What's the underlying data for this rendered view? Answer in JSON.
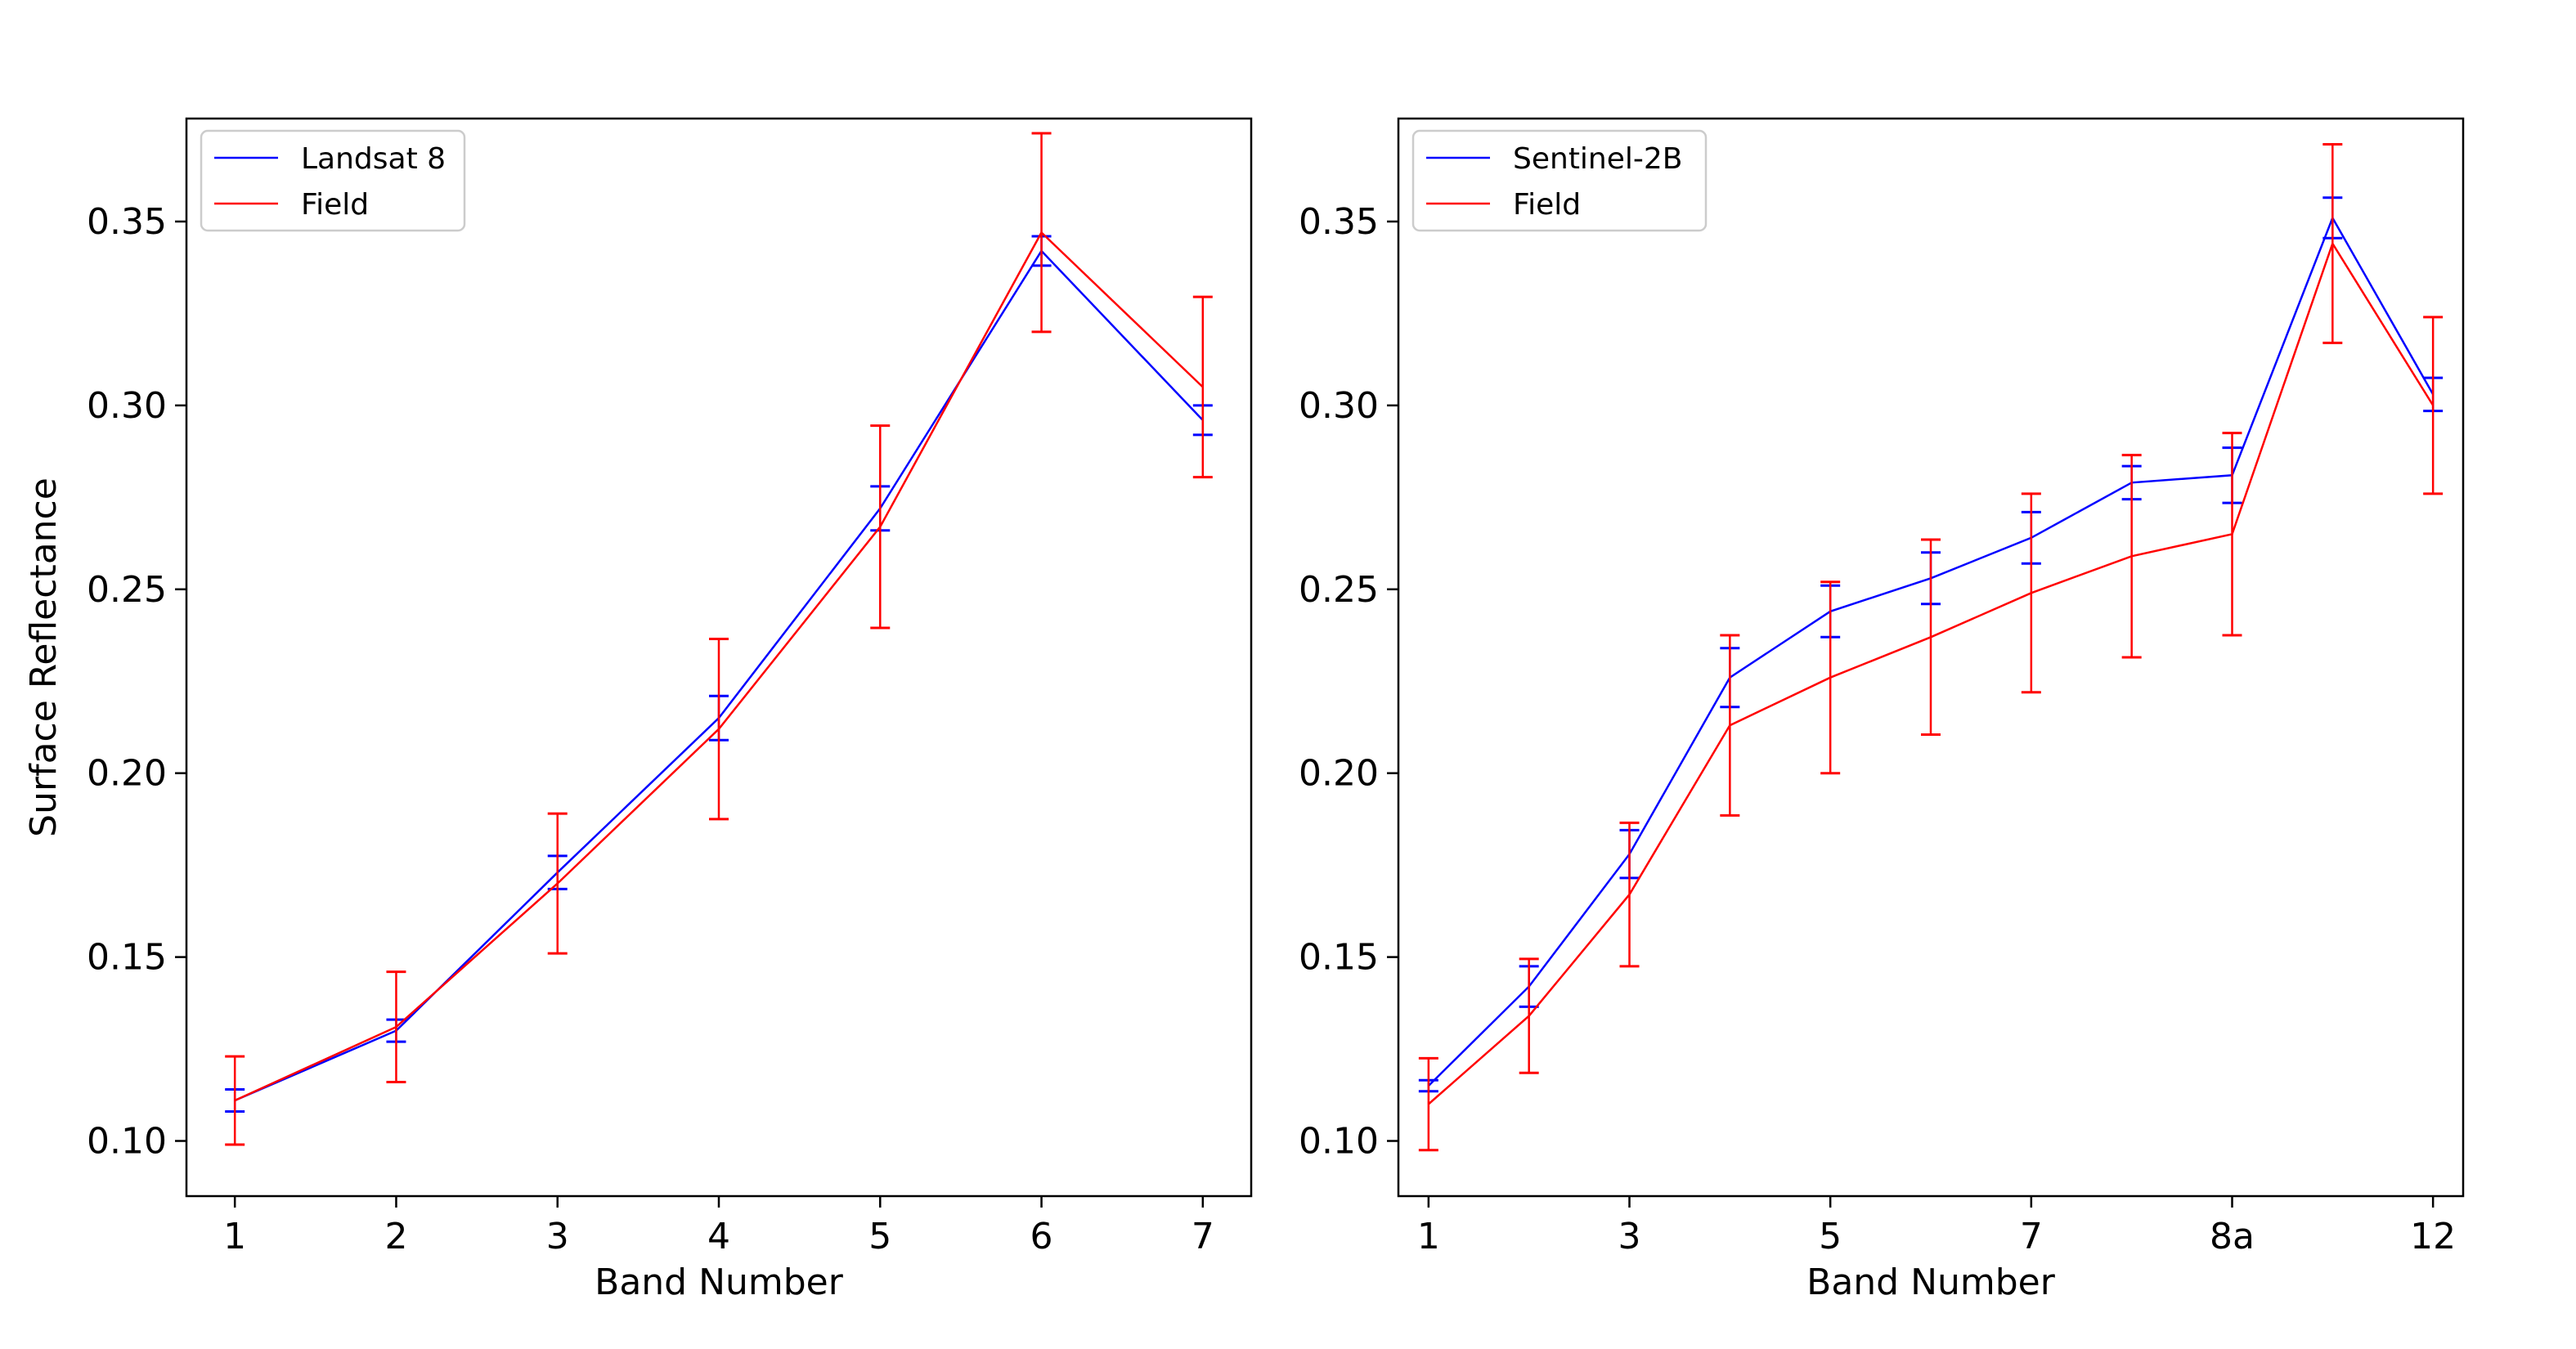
{
  "colors": {
    "sensor_blue": "#0000ff",
    "field_red": "#ff0000"
  },
  "chart_data": [
    {
      "type": "line",
      "title": "",
      "xlabel": "Band Number",
      "ylabel": "Surface Reflectance",
      "xlim": [
        0.7,
        7.3
      ],
      "ylim": [
        0.085,
        0.378
      ],
      "categories": [
        "1",
        "2",
        "3",
        "4",
        "5",
        "6",
        "7"
      ],
      "yticks": [
        "0.10",
        "0.15",
        "0.20",
        "0.25",
        "0.30",
        "0.35"
      ],
      "legend": {
        "position": "top-left",
        "entries": [
          "Landsat 8",
          "Field"
        ]
      },
      "series": [
        {
          "name": "Landsat 8",
          "color": "#0000ff",
          "values": [
            0.111,
            0.13,
            0.173,
            0.215,
            0.272,
            0.342,
            0.296
          ],
          "errors": [
            0.003,
            0.003,
            0.0045,
            0.006,
            0.006,
            0.004,
            0.004
          ]
        },
        {
          "name": "Field",
          "color": "#ff0000",
          "values": [
            0.111,
            0.131,
            0.17,
            0.212,
            0.267,
            0.347,
            0.305
          ],
          "errors": [
            0.012,
            0.015,
            0.019,
            0.0245,
            0.0275,
            0.027,
            0.0245
          ]
        }
      ]
    },
    {
      "type": "line",
      "title": "",
      "xlabel": "Band Number",
      "ylabel": "",
      "xlim": [
        0.7,
        11.3
      ],
      "ylim": [
        0.085,
        0.378
      ],
      "categories": [
        "1",
        "",
        "3",
        "",
        "5",
        "",
        "7",
        "",
        "8a",
        "",
        "12"
      ],
      "tick_labels": [
        "1",
        "3",
        "5",
        "7",
        "8a",
        "12"
      ],
      "yticks": [
        "0.10",
        "0.15",
        "0.20",
        "0.25",
        "0.30",
        "0.35"
      ],
      "legend": {
        "position": "top-left",
        "entries": [
          "Sentinel-2B",
          "Field"
        ]
      },
      "series": [
        {
          "name": "Sentinel-2B",
          "color": "#0000ff",
          "values": [
            0.115,
            0.142,
            0.178,
            0.226,
            0.244,
            0.253,
            0.264,
            0.279,
            0.281,
            0.351,
            0.303
          ],
          "errors": [
            0.0015,
            0.0055,
            0.0065,
            0.008,
            0.007,
            0.007,
            0.007,
            0.0045,
            0.0075,
            0.0055,
            0.0045
          ]
        },
        {
          "name": "Field",
          "color": "#ff0000",
          "values": [
            0.11,
            0.134,
            0.167,
            0.213,
            0.226,
            0.237,
            0.249,
            0.259,
            0.265,
            0.344,
            0.3
          ],
          "errors": [
            0.0125,
            0.0155,
            0.0195,
            0.0245,
            0.026,
            0.0265,
            0.027,
            0.0275,
            0.0275,
            0.027,
            0.024
          ]
        }
      ]
    }
  ]
}
